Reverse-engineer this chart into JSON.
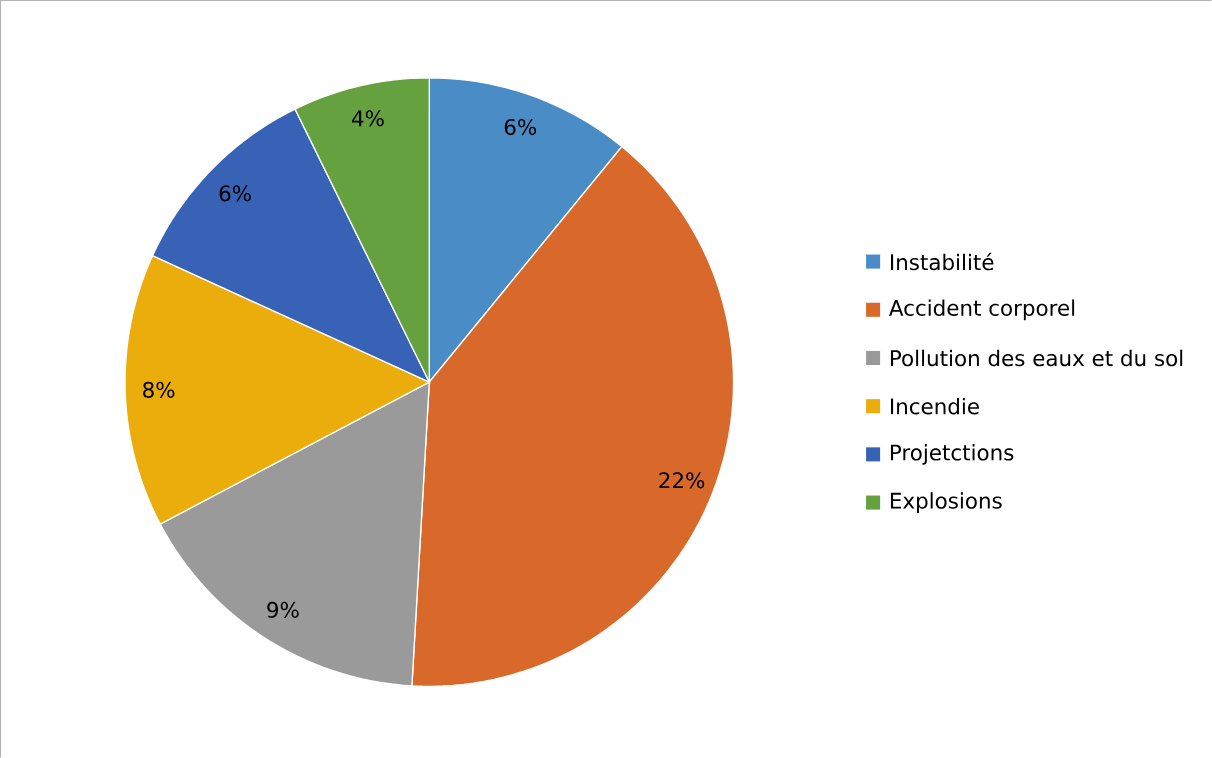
{
  "chart_data": {
    "type": "pie",
    "categories": [
      "Instabilité",
      "Accident corporel",
      "Pollution des eaux et du sol",
      "Incendie",
      "Projetctions",
      "Explosions"
    ],
    "values": [
      6,
      22,
      9,
      8,
      6,
      4
    ],
    "value_labels": [
      "6%",
      "22%",
      "9%",
      "8%",
      "6%",
      "4%"
    ],
    "colors": [
      "#4a8cc6",
      "#d8692a",
      "#9a9a9a",
      "#eaad0c",
      "#3862b5",
      "#65a13f"
    ],
    "legend": "right"
  }
}
